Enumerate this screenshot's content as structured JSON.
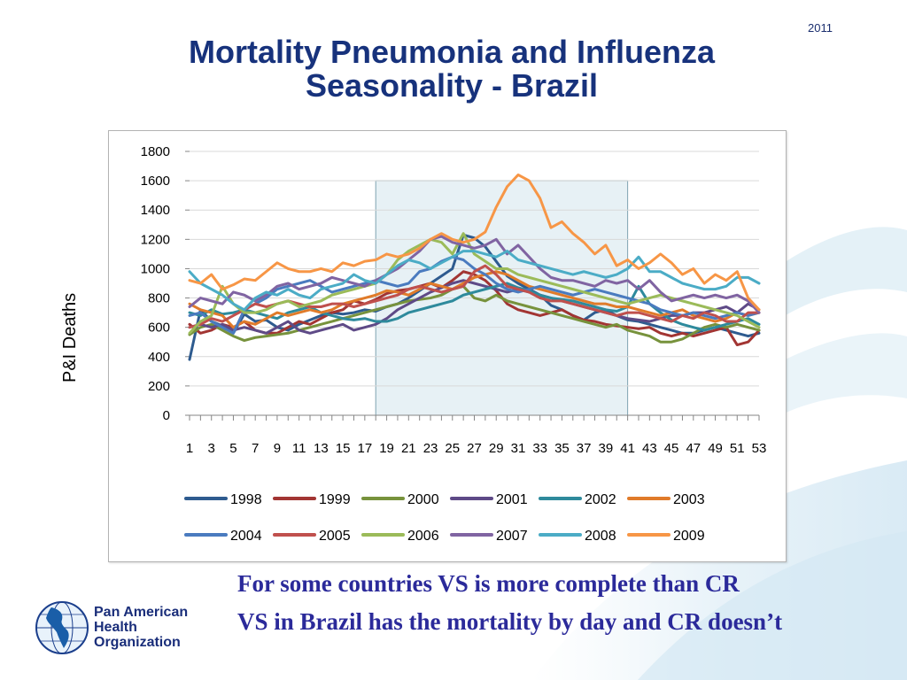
{
  "header": {
    "year": "2011",
    "title_line1": "Mortality Pneumonia and Influenza",
    "title_line2": "Seasonality - Brazil"
  },
  "notes": [
    "For some countries VS is more complete than CR",
    "VS in Brazil has the mortality by day and CR doesn’t"
  ],
  "logo": {
    "line1": "Pan American",
    "line2": "Health",
    "line3": "Organization"
  },
  "chart_data": {
    "type": "line",
    "title": "",
    "xlabel": "",
    "ylabel": "P&I Deaths",
    "ylim": [
      0,
      1800
    ],
    "yticks": [
      0,
      200,
      400,
      600,
      800,
      1000,
      1200,
      1400,
      1600,
      1800
    ],
    "x": [
      1,
      2,
      3,
      4,
      5,
      6,
      7,
      8,
      9,
      10,
      11,
      12,
      13,
      14,
      15,
      16,
      17,
      18,
      19,
      20,
      21,
      22,
      23,
      24,
      25,
      26,
      27,
      28,
      29,
      30,
      31,
      32,
      33,
      34,
      35,
      36,
      37,
      38,
      39,
      40,
      41,
      42,
      43,
      44,
      45,
      46,
      47,
      48,
      49,
      50,
      51,
      52,
      53
    ],
    "x_tick_labels": [
      "1",
      "3",
      "5",
      "7",
      "9",
      "11",
      "13",
      "15",
      "17",
      "19",
      "21",
      "23",
      "25",
      "27",
      "29",
      "31",
      "33",
      "35",
      "37",
      "39",
      "41",
      "43",
      "45",
      "47",
      "49",
      "51",
      "53"
    ],
    "highlight_weeks": [
      18,
      41
    ],
    "grid": true,
    "legend_position": "bottom",
    "series": [
      {
        "name": "1998",
        "color": "#2e5b8f",
        "values": [
          380,
          720,
          640,
          610,
          560,
          690,
          640,
          650,
          600,
          580,
          620,
          650,
          680,
          700,
          690,
          700,
          720,
          710,
          740,
          760,
          800,
          850,
          900,
          950,
          1000,
          1230,
          1210,
          1150,
          1050,
          950,
          900,
          860,
          820,
          750,
          720,
          680,
          650,
          700,
          720,
          680,
          650,
          640,
          620,
          600,
          580,
          560,
          560,
          580,
          600,
          580,
          560,
          540,
          560
        ]
      },
      {
        "name": "1999",
        "color": "#a23533",
        "values": [
          620,
          560,
          580,
          620,
          600,
          640,
          580,
          560,
          560,
          600,
          640,
          620,
          660,
          700,
          720,
          780,
          760,
          790,
          830,
          850,
          860,
          880,
          900,
          870,
          920,
          980,
          960,
          920,
          850,
          760,
          720,
          700,
          680,
          700,
          720,
          680,
          650,
          640,
          620,
          610,
          600,
          590,
          600,
          560,
          540,
          560,
          540,
          560,
          580,
          600,
          480,
          500,
          580
        ]
      },
      {
        "name": "2000",
        "color": "#77923c",
        "values": [
          550,
          600,
          620,
          580,
          540,
          510,
          530,
          540,
          550,
          560,
          580,
          600,
          620,
          640,
          660,
          680,
          700,
          720,
          740,
          760,
          780,
          790,
          800,
          820,
          860,
          880,
          800,
          780,
          820,
          780,
          760,
          740,
          720,
          700,
          680,
          660,
          640,
          620,
          600,
          620,
          580,
          560,
          540,
          500,
          500,
          520,
          560,
          600,
          620,
          600,
          620,
          600,
          580
        ]
      },
      {
        "name": "2001",
        "color": "#5e4a87",
        "values": [
          600,
          620,
          600,
          620,
          580,
          600,
          580,
          560,
          600,
          640,
          580,
          560,
          580,
          600,
          620,
          580,
          600,
          620,
          660,
          720,
          760,
          800,
          840,
          870,
          900,
          920,
          900,
          880,
          860,
          840,
          860,
          840,
          820,
          800,
          780,
          760,
          740,
          720,
          700,
          680,
          660,
          650,
          640,
          660,
          680,
          680,
          700,
          700,
          720,
          740,
          700,
          760,
          720
        ]
      },
      {
        "name": "2002",
        "color": "#2e8a9c",
        "values": [
          700,
          680,
          720,
          690,
          700,
          720,
          700,
          680,
          660,
          700,
          720,
          740,
          700,
          680,
          660,
          650,
          660,
          640,
          640,
          660,
          700,
          720,
          740,
          760,
          780,
          820,
          840,
          860,
          880,
          900,
          870,
          850,
          820,
          800,
          790,
          780,
          760,
          740,
          720,
          710,
          740,
          880,
          760,
          700,
          650,
          620,
          600,
          580,
          600,
          620,
          640,
          660,
          620
        ]
      },
      {
        "name": "2003",
        "color": "#e07b2a",
        "values": [
          760,
          720,
          700,
          680,
          600,
          640,
          620,
          660,
          700,
          680,
          700,
          720,
          700,
          720,
          760,
          780,
          800,
          820,
          850,
          840,
          820,
          860,
          900,
          880,
          860,
          900,
          940,
          960,
          980,
          960,
          920,
          880,
          860,
          840,
          820,
          800,
          780,
          760,
          760,
          740,
          740,
          720,
          700,
          680,
          700,
          720,
          680,
          660,
          640,
          660,
          700,
          680,
          700
        ]
      },
      {
        "name": "2004",
        "color": "#4a7bbf",
        "values": [
          680,
          700,
          640,
          600,
          560,
          720,
          760,
          800,
          860,
          880,
          900,
          920,
          880,
          840,
          860,
          880,
          900,
          920,
          900,
          880,
          900,
          980,
          1000,
          1050,
          1080,
          1060,
          1000,
          960,
          900,
          860,
          840,
          860,
          880,
          860,
          840,
          820,
          840,
          860,
          840,
          820,
          800,
          780,
          760,
          720,
          700,
          680,
          700,
          680,
          660,
          680,
          700,
          680,
          700
        ]
      },
      {
        "name": "2005",
        "color": "#c0504d",
        "values": [
          600,
          620,
          660,
          640,
          680,
          720,
          760,
          740,
          760,
          780,
          760,
          740,
          740,
          760,
          760,
          740,
          760,
          780,
          800,
          820,
          860,
          880,
          860,
          840,
          860,
          880,
          980,
          1020,
          960,
          880,
          860,
          840,
          800,
          780,
          780,
          760,
          740,
          720,
          700,
          680,
          700,
          700,
          680,
          660,
          640,
          680,
          660,
          700,
          680,
          640,
          640,
          700,
          700
        ]
      },
      {
        "name": "2006",
        "color": "#9bbb59",
        "values": [
          560,
          640,
          680,
          880,
          760,
          700,
          700,
          720,
          760,
          780,
          740,
          760,
          780,
          820,
          840,
          860,
          880,
          900,
          960,
          1060,
          1120,
          1160,
          1200,
          1180,
          1100,
          1240,
          1100,
          1050,
          1000,
          1000,
          960,
          940,
          920,
          900,
          880,
          860,
          840,
          820,
          800,
          780,
          760,
          780,
          800,
          820,
          800,
          780,
          760,
          740,
          720,
          700,
          680,
          640,
          600
        ]
      },
      {
        "name": "2007",
        "color": "#8064a2",
        "values": [
          740,
          800,
          780,
          760,
          840,
          820,
          780,
          820,
          880,
          900,
          860,
          880,
          900,
          940,
          920,
          900,
          880,
          920,
          960,
          1000,
          1060,
          1120,
          1200,
          1220,
          1180,
          1160,
          1140,
          1160,
          1200,
          1100,
          1160,
          1080,
          1000,
          940,
          920,
          920,
          900,
          880,
          920,
          900,
          920,
          860,
          920,
          840,
          780,
          800,
          820,
          800,
          820,
          800,
          820,
          780,
          700
        ]
      },
      {
        "name": "2008",
        "color": "#4bacc6",
        "values": [
          980,
          900,
          860,
          820,
          760,
          720,
          800,
          840,
          820,
          860,
          820,
          800,
          860,
          880,
          900,
          960,
          920,
          900,
          960,
          1020,
          1060,
          1040,
          1000,
          1040,
          1080,
          1120,
          1120,
          1100,
          1080,
          1120,
          1060,
          1040,
          1020,
          1000,
          980,
          960,
          980,
          960,
          940,
          960,
          1000,
          1080,
          980,
          980,
          940,
          900,
          880,
          860,
          860,
          880,
          940,
          940,
          900
        ]
      },
      {
        "name": "2009",
        "color": "#f79646",
        "values": [
          920,
          900,
          960,
          860,
          890,
          930,
          920,
          980,
          1040,
          1000,
          980,
          980,
          1000,
          980,
          1040,
          1020,
          1050,
          1060,
          1100,
          1080,
          1100,
          1140,
          1200,
          1240,
          1200,
          1180,
          1200,
          1250,
          1420,
          1560,
          1640,
          1600,
          1480,
          1280,
          1320,
          1240,
          1180,
          1100,
          1160,
          1020,
          1060,
          1000,
          1040,
          1100,
          1040,
          960,
          1000,
          900,
          960,
          920,
          980,
          800,
          720
        ]
      }
    ]
  }
}
